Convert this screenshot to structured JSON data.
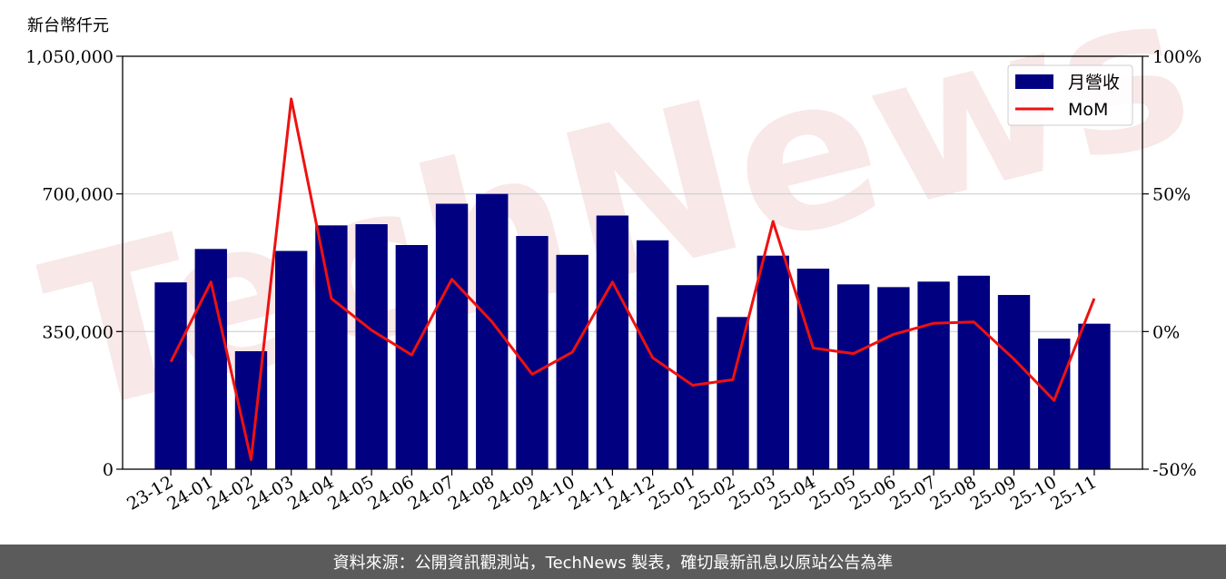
{
  "chart_data": {
    "type": "bar",
    "y_unit": "新台幣仟元",
    "categories": [
      "23-12",
      "24-01",
      "24-02",
      "24-03",
      "24-04",
      "24-05",
      "24-06",
      "24-07",
      "24-08",
      "24-09",
      "24-10",
      "24-11",
      "24-12",
      "25-01",
      "25-02",
      "25-03",
      "25-04",
      "25-05",
      "25-06",
      "25-07",
      "25-08",
      "25-09",
      "25-10",
      "25-11"
    ],
    "series": [
      {
        "name": "月營收",
        "type": "bar",
        "axis": "left",
        "color": "#000080",
        "values": [
          475000,
          560000,
          300000,
          555000,
          620000,
          623000,
          570000,
          675000,
          700000,
          593000,
          545000,
          645000,
          582000,
          468000,
          387000,
          543000,
          510000,
          470000,
          463000,
          477000,
          492000,
          443000,
          332000,
          370000
        ]
      },
      {
        "name": "MoM",
        "type": "line",
        "axis": "right",
        "color": "#ee1111",
        "values": [
          -11,
          18,
          -46.5,
          84.5,
          12,
          0.5,
          -8.5,
          19,
          3.5,
          -15.5,
          -7.5,
          18,
          -9.5,
          -19.5,
          -17.5,
          40,
          -6,
          -8,
          -1,
          3,
          3.5,
          -10,
          -25,
          12
        ]
      }
    ],
    "y_left": {
      "min": 0,
      "max": 1050000,
      "ticks": [
        0,
        350000,
        700000,
        1050000
      ],
      "tick_labels": [
        "0",
        "350,000",
        "700,000",
        "1,050,000"
      ]
    },
    "y_right": {
      "min": -50,
      "max": 100,
      "ticks": [
        -50,
        0,
        50,
        100
      ],
      "tick_labels": [
        "-50%",
        "0%",
        "50%",
        "100%"
      ]
    },
    "grid": "horizontal",
    "legend": "top-right",
    "watermark": "TechNews"
  },
  "footer": {
    "text": "資料來源：公開資訊觀測站，TechNews 製表，確切最新訊息以原站公告為準"
  }
}
